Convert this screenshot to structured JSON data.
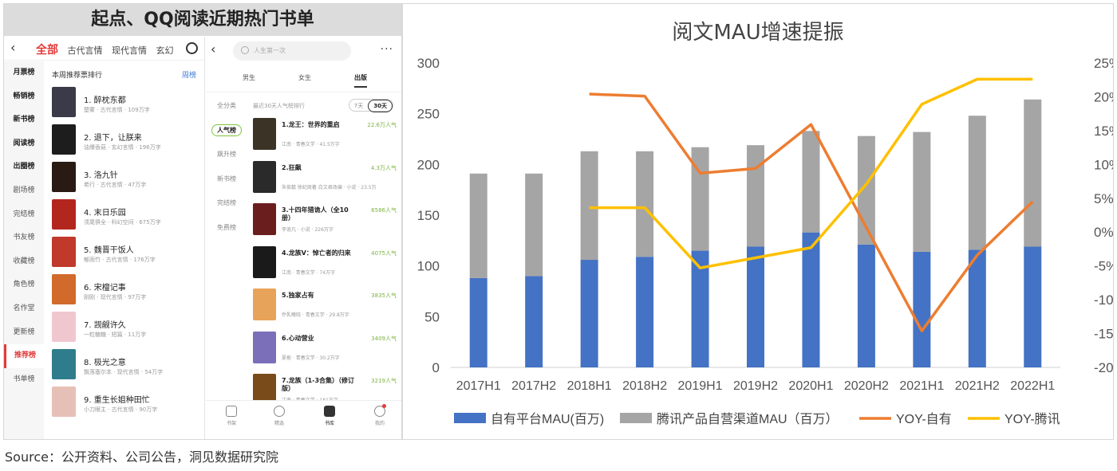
{
  "left_panel": {
    "title": "起点、QQ阅读近期热门书单"
  },
  "qidian": {
    "tabs": [
      "全部",
      "古代言情",
      "现代言情",
      "玄幻"
    ],
    "sidebar": [
      "月票榜",
      "畅销榜",
      "新书榜",
      "阅读榜",
      "出圈榜",
      "剧场榜",
      "完结榜",
      "书友榜",
      "收藏榜",
      "角色榜",
      "名作堂",
      "更新榜",
      "推荐榜",
      "书单榜"
    ],
    "section_title": "本周推荐票排行",
    "period_link": "周榜",
    "books": [
      {
        "name": "1. 醉枕东都",
        "meta": "楚雾 · 古代言情 · 109万字",
        "color": "#3a3a48"
      },
      {
        "name": "2. 退下，让朕来",
        "meta": "油爆香菇 · 玄幻言情 · 196万字",
        "color": "#1d1d1d"
      },
      {
        "name": "3. 洛九针",
        "meta": "希行 · 古代言情 · 47万字",
        "color": "#2a1a14"
      },
      {
        "name": "4. 末日乐园",
        "meta": "须尾俱全 · 科幻空间 · 675万字",
        "color": "#b3261e"
      },
      {
        "name": "5. 魏晋干饭人",
        "meta": "郁雨竹 · 古代言情 · 176万字",
        "color": "#c0392b"
      },
      {
        "name": "6. 宋檀记事",
        "meta": "刚刚 · 现代言情 · 97万字",
        "color": "#d16a2a"
      },
      {
        "name": "7. 觊觎许久",
        "meta": "一粒糖糖 · 短篇 · 11万字",
        "color": "#f1c7cf"
      },
      {
        "name": "8. 极光之意",
        "meta": "飘落塞尔本 · 现代言情 · 54万字",
        "color": "#2f7d8c"
      },
      {
        "name": "9. 重生长姐种田忙",
        "meta": "小刀眼主 · 古代言情 · 90万字",
        "color": "#e6c0b6"
      }
    ]
  },
  "qqreader": {
    "search_placeholder": "人生第一次",
    "more": "···",
    "tabs": [
      "男生",
      "女生",
      "出版"
    ],
    "sidebar": [
      "全分类",
      "人气榜",
      "飙升榜",
      "新书榜",
      "完结榜",
      "免费榜"
    ],
    "section_title": "最近30天人气榜排行",
    "toggle": [
      "7天",
      "30天"
    ],
    "books": [
      {
        "name": "1.龙王：世界的重启",
        "meta": "江南 · 青春文学 · 41.5万字",
        "pop": "22.6万人气",
        "color": "#3b3326"
      },
      {
        "name": "2.狂飙",
        "meta": "朱俊懿 徐纪周著 白文君改编 · 小说 · 23.5万",
        "pop": "4.3万人气",
        "color": "#2a2a2a"
      },
      {
        "name": "3.十四年猎诡人（全10册）",
        "meta": "李诡凡 · 小说 · 226万字",
        "pop": "6586人气",
        "color": "#6b1e1e"
      },
      {
        "name": "4.龙族V：悼亡者的归来",
        "meta": "江南 · 青春文学 · 74万字",
        "pop": "4075人气",
        "color": "#1a1a1a"
      },
      {
        "name": "5.独家占有",
        "meta": "乔乳曦晓 · 青春文学 · 29.8万字",
        "pop": "3835人气",
        "color": "#e8a35a"
      },
      {
        "name": "6.心动营业",
        "meta": "夏栀 · 青春文学 · 30.2万字",
        "pop": "3409人气",
        "color": "#7a6fb8"
      },
      {
        "name": "7.龙族（1-3合集）（修订版）",
        "meta": "江南 · 青春文学 · 181万字",
        "pop": "3219人气",
        "color": "#7a4b1a"
      }
    ],
    "bottom_nav": [
      "书架",
      "精选",
      "书库",
      "我的"
    ]
  },
  "chart": {
    "title": "阅文MAU增速提振",
    "source": "Source：公开资料、公司公告，洞见数据研究院"
  },
  "chart_data": {
    "type": "bar",
    "title": "阅文MAU增速提振",
    "categories": [
      "2017H1",
      "2017H2",
      "2018H1",
      "2018H2",
      "2019H1",
      "2019H2",
      "2020H1",
      "2020H2",
      "2021H1",
      "2021H2",
      "2022H1"
    ],
    "stacked": true,
    "ylim": [
      0,
      300
    ],
    "yticks": [
      0,
      50,
      100,
      150,
      200,
      250,
      300
    ],
    "y2lim": [
      -20,
      25
    ],
    "y2ticks": [
      -20,
      -15,
      -10,
      -5,
      0,
      5,
      10,
      15,
      20,
      25
    ],
    "y2tick_labels": [
      "-20%",
      "-15%",
      "-10%",
      "-5%",
      "0%",
      "5%",
      "10%",
      "15%",
      "20%",
      "25%"
    ],
    "grid": false,
    "legend": "bottom",
    "series": [
      {
        "name": "自有平台MAU(百万)",
        "kind": "bar",
        "axis": "left",
        "color": "#4472c4",
        "values": [
          88,
          90,
          106,
          109,
          115,
          119,
          133,
          121,
          114,
          116,
          119
        ]
      },
      {
        "name": "腾讯产品自营渠道MAU（百万）",
        "kind": "bar",
        "axis": "left",
        "color": "#a5a5a5",
        "values": [
          103,
          101,
          107,
          104,
          102,
          100,
          100,
          107,
          118,
          132,
          145
        ]
      },
      {
        "name": "YOY-自有",
        "kind": "line",
        "axis": "right",
        "color": "#ed7d31",
        "values": [
          null,
          null,
          20.4,
          20.1,
          8.7,
          9.4,
          15.9,
          null,
          -14.6,
          -3.4,
          4.5
        ]
      },
      {
        "name": "YOY-腾讯",
        "kind": "line",
        "axis": "right",
        "color": "#ffc000",
        "values": [
          null,
          null,
          3.6,
          3.6,
          -5.3,
          -3.8,
          -2.3,
          7.1,
          18.9,
          22.6,
          22.6
        ]
      }
    ]
  }
}
